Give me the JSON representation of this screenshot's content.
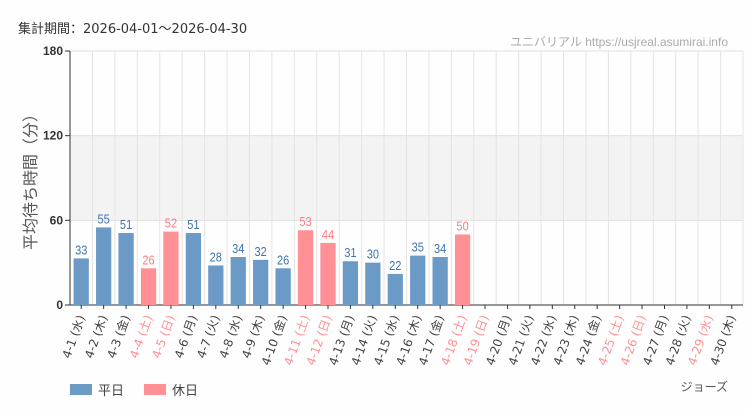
{
  "header": {
    "period": "集計期間：2026-04-01～2026-04-30",
    "site": "ユニバリアル https://usjreal.asumirai.info"
  },
  "attraction": "ジョーズ",
  "colors": {
    "weekday": "#6b9ac6",
    "holiday": "#ff9096",
    "weekday_label": "#3f74ad",
    "holiday_label": "#ff7a80",
    "band": "#f3f3f3"
  },
  "chart_data": {
    "type": "bar",
    "ylabel": "平均待ち時間（分）",
    "ylim": [
      0,
      180
    ],
    "yticks": [
      0,
      60,
      120,
      180
    ],
    "shaded_band": [
      60,
      120
    ],
    "grid": true,
    "legend_placement": "bottom-left",
    "legend": [
      {
        "name": "平日",
        "key": "weekday"
      },
      {
        "name": "休日",
        "key": "holiday"
      }
    ],
    "categories": [
      "4-1 (水)",
      "4-2 (木)",
      "4-3 (金)",
      "4-4 (土)",
      "4-5 (日)",
      "4-6 (月)",
      "4-7 (火)",
      "4-8 (水)",
      "4-9 (木)",
      "4-10 (金)",
      "4-11 (土)",
      "4-12 (日)",
      "4-13 (月)",
      "4-14 (火)",
      "4-15 (水)",
      "4-16 (木)",
      "4-17 (金)",
      "4-18 (土)",
      "4-19 (日)",
      "4-20 (月)",
      "4-21 (火)",
      "4-22 (水)",
      "4-23 (木)",
      "4-24 (金)",
      "4-25 (土)",
      "4-26 (日)",
      "4-27 (月)",
      "4-28 (火)",
      "4-29 (水)",
      "4-30 (木)"
    ],
    "holiday": [
      false,
      false,
      false,
      true,
      true,
      false,
      false,
      false,
      false,
      false,
      true,
      true,
      false,
      false,
      false,
      false,
      false,
      true,
      true,
      false,
      false,
      false,
      false,
      false,
      true,
      true,
      false,
      false,
      true,
      false
    ],
    "values": [
      33,
      55,
      51,
      26,
      52,
      51,
      28,
      34,
      32,
      26,
      53,
      44,
      31,
      30,
      22,
      35,
      34,
      50,
      null,
      null,
      null,
      null,
      null,
      null,
      null,
      null,
      null,
      null,
      null,
      null
    ]
  }
}
